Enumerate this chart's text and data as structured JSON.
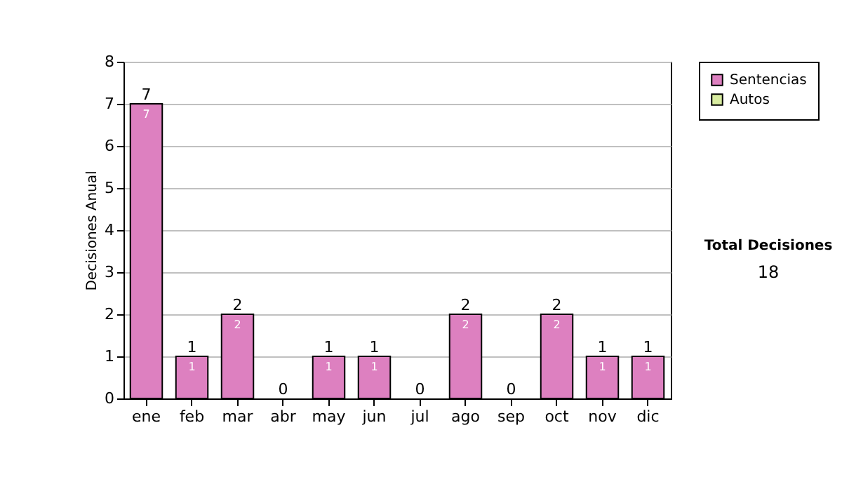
{
  "chart_data": {
    "type": "bar",
    "ylabel": "Decisiones Anual",
    "categories": [
      "ene",
      "feb",
      "mar",
      "abr",
      "may",
      "jun",
      "jul",
      "ago",
      "sep",
      "oct",
      "nov",
      "dic"
    ],
    "series": [
      {
        "name": "Sentencias",
        "color": "#dd80c0",
        "values": [
          7,
          1,
          2,
          0,
          1,
          1,
          0,
          2,
          0,
          2,
          1,
          1
        ],
        "value_labels": [
          "7",
          "1",
          "2",
          null,
          "1",
          "1",
          null,
          "2",
          null,
          "2",
          "1",
          "1"
        ]
      },
      {
        "name": "Autos",
        "color": "#d8eca0",
        "values": [
          0,
          0,
          0,
          0,
          0,
          0,
          0,
          0,
          0,
          0,
          0,
          0
        ]
      }
    ],
    "stacked": true,
    "totals": [
      "7",
      "1",
      "2",
      "0",
      "1",
      "1",
      "0",
      "2",
      "0",
      "2",
      "1",
      "1"
    ],
    "ylim": [
      0,
      8
    ],
    "yticks": [
      0,
      1,
      2,
      3,
      4,
      5,
      6,
      7,
      8
    ],
    "grid": "y",
    "legend": "right",
    "annotations": [
      "Total Decisiones",
      "18"
    ]
  }
}
